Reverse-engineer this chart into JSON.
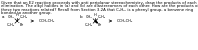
{
  "lines": [
    "Given that an E2 reaction proceeds with anti periplanar stereochemistry, draw the products of each",
    "elimination. The alkyl halides in (a) and (b) are diastereomers of each other. How are the products of",
    "these two reactions related? Recall from Section 3.2A that C₆H₅- is a phenyl group, a benzene ring",
    "bonded to another group."
  ],
  "background": "#ffffff",
  "text_color": "#000000",
  "font_size_body": 2.8,
  "font_size_label": 3.0,
  "font_size_chem": 2.6,
  "font_size_arrow": 4.0,
  "struct_a": {
    "label": "a.",
    "groups": [
      "CH₃",
      "C₆H₅",
      "C₆H₅",
      "C₆H₅",
      "Br",
      "H"
    ],
    "arrow": "→",
    "product": "OCH₂CH₃"
  },
  "struct_b": {
    "label": "b.",
    "groups": [
      "CH₃",
      "C₆H₅",
      "C₆H₅",
      "C₆H₅",
      "Br",
      "H"
    ],
    "arrow": "→",
    "product": "OCH₂CH₃"
  }
}
